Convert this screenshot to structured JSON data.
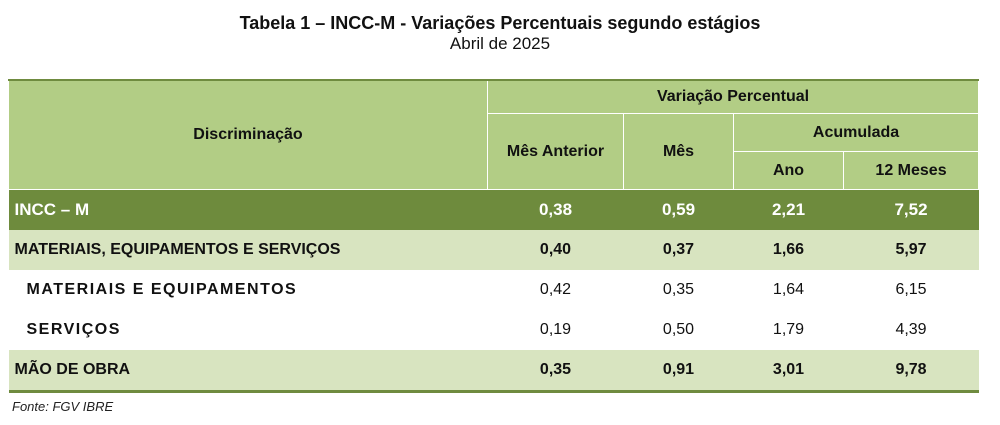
{
  "title": "Tabela 1 – INCC-M - Variações Percentuais segundo estágios",
  "subtitle": "Abril de 2025",
  "header": {
    "discriminacao": "Discriminação",
    "variacao_percentual": "Variação Percentual",
    "mes_anterior": "Mês Anterior",
    "mes": "Mês",
    "acumulada": "Acumulada",
    "ano": "Ano",
    "doze_meses": "12 Meses"
  },
  "rows": [
    {
      "label": "INCC – M",
      "mes_anterior": "0,38",
      "mes": "0,59",
      "ano": "2,21",
      "doze_meses": "7,52"
    },
    {
      "label": "MATERIAIS, EQUIPAMENTOS E SERVIÇOS",
      "mes_anterior": "0,40",
      "mes": "0,37",
      "ano": "1,66",
      "doze_meses": "5,97"
    },
    {
      "label": "MATERIAIS E EQUIPAMENTOS",
      "mes_anterior": "0,42",
      "mes": "0,35",
      "ano": "1,64",
      "doze_meses": "6,15"
    },
    {
      "label": "SERVIÇOS",
      "mes_anterior": "0,19",
      "mes": "0,50",
      "ano": "1,79",
      "doze_meses": "4,39"
    },
    {
      "label": "MÃO DE OBRA",
      "mes_anterior": "0,35",
      "mes": "0,91",
      "ano": "3,01",
      "doze_meses": "9,78"
    }
  ],
  "source": "Fonte: FGV IBRE",
  "colors": {
    "header_bg": "#b2cd85",
    "total_row_bg": "#6e8b3d",
    "group_row_bg": "#d8e4c0"
  }
}
